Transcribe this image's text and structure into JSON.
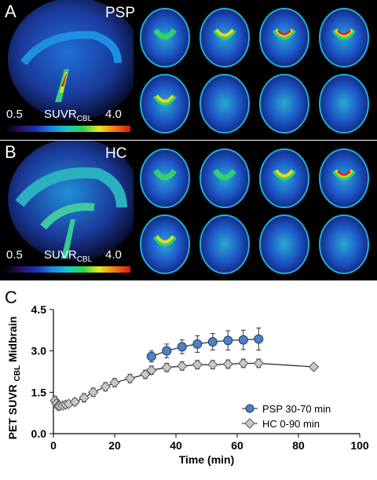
{
  "panel_a": {
    "letter": "A",
    "group": "PSP",
    "colorbar": {
      "min": "0.5",
      "label": "SUVR",
      "label_sub": "CBL",
      "max": "4.0"
    }
  },
  "panel_b": {
    "letter": "B",
    "group": "HC",
    "colorbar": {
      "min": "0.5",
      "label": "SUVR",
      "label_sub": "CBL",
      "max": "4.0"
    }
  },
  "panel_c": {
    "letter": "C"
  },
  "chart_data": {
    "type": "line",
    "xlabel": "Time (min)",
    "ylabel": "PET SUVR",
    "ylabel_sub": "CBL",
    "ylabel_suffix": " Midbrain",
    "xlim": [
      0,
      100
    ],
    "ylim": [
      0.0,
      4.5
    ],
    "xticks": [
      0,
      20,
      40,
      60,
      80,
      100
    ],
    "yticks": [
      "0.0",
      "1.5",
      "3.0",
      "4.5"
    ],
    "legend_position": "bottom-right",
    "series": [
      {
        "name": "PSP 30-70 min",
        "marker": "circle",
        "color": "#4f7fc4",
        "x": [
          32,
          37,
          42,
          47,
          52,
          57,
          62,
          67
        ],
        "y": [
          2.8,
          3.0,
          3.15,
          3.25,
          3.33,
          3.38,
          3.4,
          3.43
        ],
        "err": [
          0.2,
          0.25,
          0.25,
          0.3,
          0.3,
          0.35,
          0.35,
          0.4
        ]
      },
      {
        "name": "HC 0-90 min",
        "marker": "diamond",
        "color": "#c8c8c8",
        "x": [
          0.5,
          1,
          1.5,
          2,
          3,
          4,
          5,
          7,
          10,
          13,
          17,
          20,
          25,
          30,
          32,
          37,
          42,
          47,
          52,
          57,
          62,
          67,
          85
        ],
        "y": [
          1.2,
          1.1,
          1.0,
          1.0,
          1.02,
          1.05,
          1.08,
          1.15,
          1.3,
          1.5,
          1.7,
          1.85,
          2.0,
          2.15,
          2.3,
          2.4,
          2.45,
          2.5,
          2.5,
          2.52,
          2.55,
          2.55,
          2.42
        ],
        "err": [
          0.15,
          0.12,
          0.1,
          0.1,
          0.1,
          0.1,
          0.1,
          0.12,
          0.15,
          0.15,
          0.15,
          0.15,
          0.15,
          0.15,
          0.15,
          0.15,
          0.15,
          0.15,
          0.15,
          0.15,
          0.15,
          0.15,
          0.1
        ]
      }
    ]
  }
}
